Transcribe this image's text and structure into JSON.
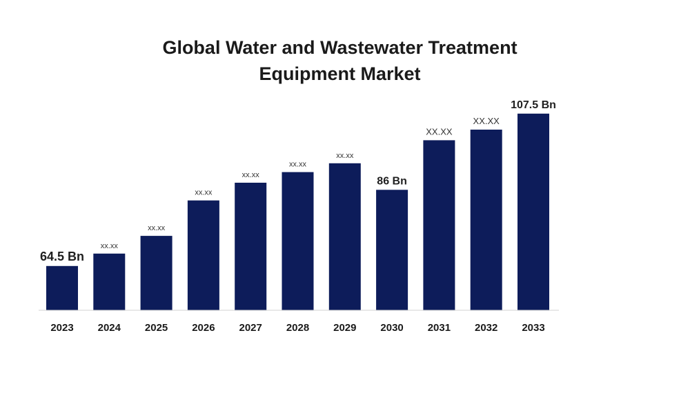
{
  "chart_data": {
    "type": "bar",
    "title_lines": [
      "Global Water and Wastewater Treatment",
      "Equipment Market"
    ],
    "categories": [
      "2023",
      "2024",
      "2025",
      "2026",
      "2027",
      "2028",
      "2029",
      "2030",
      "2031",
      "2032",
      "2033"
    ],
    "values": [
      64.5,
      68.0,
      73.0,
      83.0,
      88.0,
      91.0,
      93.5,
      86.0,
      100.0,
      103.0,
      107.5
    ],
    "data_labels": [
      "64.5 Bn",
      "xx.xx",
      "xx.xx",
      "xx.xx",
      "xx.xx",
      "xx.xx",
      "xx.xx",
      "86 Bn",
      "XX.XX",
      "XX.XX",
      "107.5 Bn"
    ],
    "xlabel": "",
    "ylabel": "",
    "ylim": [
      52,
      110
    ],
    "grid": false,
    "legend": "none",
    "bar_color": "#0d1c5a"
  }
}
